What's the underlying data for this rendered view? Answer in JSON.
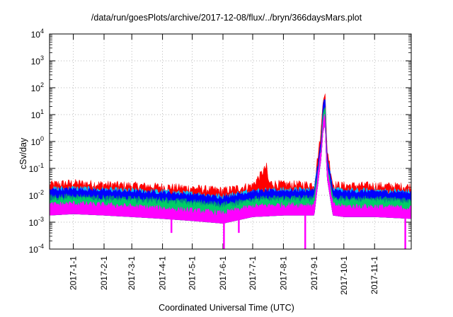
{
  "chart_data": {
    "type": "area",
    "title": "/data/run/goesPlots/archive/2017-12-08/flux/../bryn/366daysMars.plot",
    "xlabel": "Coordinated Universal Time (UTC)",
    "ylabel": "cSv/day",
    "yscale": "log",
    "ylim": [
      0.0001,
      10000
    ],
    "xlim": [
      "2016-12-08",
      "2017-12-08"
    ],
    "grid": true,
    "legend": "none",
    "y_ticks": [
      {
        "base": "10",
        "exp": "-4",
        "value": 0.0001
      },
      {
        "base": "10",
        "exp": "-3",
        "value": 0.001
      },
      {
        "base": "10",
        "exp": "-2",
        "value": 0.01
      },
      {
        "base": "10",
        "exp": "-1",
        "value": 0.1
      },
      {
        "base": "10",
        "exp": "0",
        "value": 1
      },
      {
        "base": "10",
        "exp": "1",
        "value": 10
      },
      {
        "base": "10",
        "exp": "2",
        "value": 100
      },
      {
        "base": "10",
        "exp": "3",
        "value": 1000
      },
      {
        "base": "10",
        "exp": "4",
        "value": 10000
      }
    ],
    "x_ticks": [
      "2017-1-1",
      "2017-2-1",
      "2017-3-1",
      "2017-4-1",
      "2017-5-1",
      "2017-6-1",
      "2017-7-1",
      "2017-8-1",
      "2017-9-1",
      "2017-10-1",
      "2017-11-1"
    ],
    "x_tick_dates": [
      "2017-01-01",
      "2017-02-01",
      "2017-03-01",
      "2017-04-01",
      "2017-05-01",
      "2017-06-01",
      "2017-07-01",
      "2017-08-01",
      "2017-09-01",
      "2017-10-01",
      "2017-11-01"
    ],
    "series_colors": [
      "#ff0000",
      "#00ff00",
      "#0000ff",
      "#00c0ff",
      "#008888",
      "#ff00ff"
    ],
    "series": [
      {
        "color": "#ff0000",
        "x": [
          "2016-12-08",
          "2017-01-01",
          "2017-02-01",
          "2017-03-01",
          "2017-04-01",
          "2017-05-01",
          "2017-06-01",
          "2017-07-01",
          "2017-07-15",
          "2017-07-17",
          "2017-08-01",
          "2017-09-01",
          "2017-09-08",
          "2017-09-10",
          "2017-09-12",
          "2017-09-14",
          "2017-09-20",
          "2017-10-01",
          "2017-11-01",
          "2017-12-08"
        ],
        "values": [
          0.022,
          0.025,
          0.022,
          0.02,
          0.018,
          0.016,
          0.013,
          0.02,
          0.1,
          0.025,
          0.022,
          0.022,
          2.0,
          40,
          60,
          0.5,
          0.022,
          0.02,
          0.02,
          0.018
        ]
      },
      {
        "color": "#0000ff",
        "x": [
          "2016-12-08",
          "2017-01-01",
          "2017-02-01",
          "2017-03-01",
          "2017-04-01",
          "2017-05-01",
          "2017-06-01",
          "2017-07-01",
          "2017-08-01",
          "2017-09-01",
          "2017-09-08",
          "2017-09-10",
          "2017-09-12",
          "2017-09-14",
          "2017-09-20",
          "2017-10-01",
          "2017-11-01",
          "2017-12-08"
        ],
        "values": [
          0.015,
          0.016,
          0.014,
          0.013,
          0.012,
          0.01,
          0.008,
          0.013,
          0.014,
          0.014,
          1.0,
          20,
          40,
          0.3,
          0.014,
          0.013,
          0.013,
          0.012
        ]
      },
      {
        "color": "#ff00ff",
        "x": [
          "2016-12-08",
          "2017-01-01",
          "2017-02-01",
          "2017-03-01",
          "2017-04-01",
          "2017-05-01",
          "2017-06-01",
          "2017-07-01",
          "2017-08-01",
          "2017-09-01",
          "2017-09-08",
          "2017-09-10",
          "2017-09-12",
          "2017-09-14",
          "2017-09-20",
          "2017-10-01",
          "2017-11-01",
          "2017-12-08"
        ],
        "values": [
          0.004,
          0.0045,
          0.004,
          0.0035,
          0.003,
          0.0025,
          0.002,
          0.0035,
          0.004,
          0.004,
          0.5,
          5,
          10,
          0.1,
          0.004,
          0.0035,
          0.0035,
          0.003
        ],
        "dips": [
          {
            "x": "2017-04-10",
            "value": 0.0004
          },
          {
            "x": "2017-06-02",
            "value": 0.0001
          },
          {
            "x": "2017-06-17",
            "value": 0.0004
          },
          {
            "x": "2017-08-23",
            "value": 0.0001
          },
          {
            "x": "2017-12-02",
            "value": 0.0001
          }
        ]
      }
    ]
  }
}
